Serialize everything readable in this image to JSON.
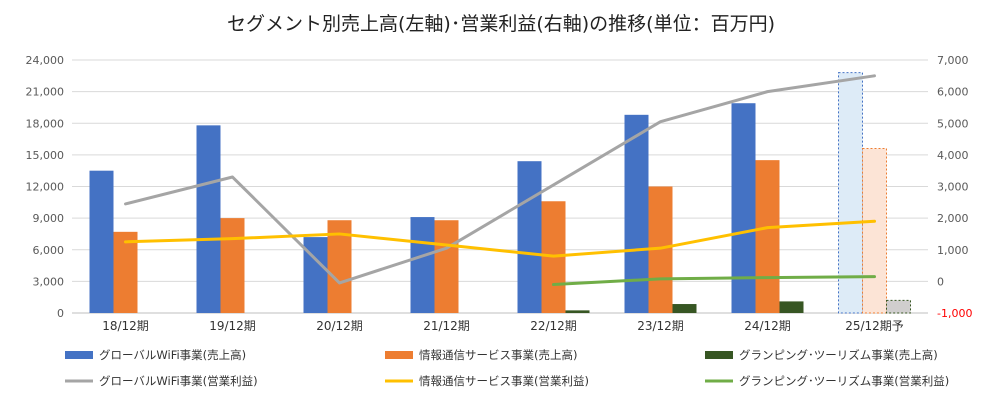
{
  "chart_data": {
    "type": "bar",
    "title": "セグメント別売上高(左軸)･営業利益(右軸)の推移(単位：百万円)",
    "categories": [
      "18/12期",
      "19/12期",
      "20/12期",
      "21/12期",
      "22/12期",
      "23/12期",
      "24/12期",
      "25/12期予"
    ],
    "y_left": {
      "min": 0,
      "max": 24000,
      "step": 3000,
      "ticks": [
        "0",
        "3,000",
        "6,000",
        "9,000",
        "12,000",
        "15,000",
        "18,000",
        "21,000",
        "24,000"
      ]
    },
    "y_right": {
      "min": -1000,
      "max": 7000,
      "step": 1000,
      "ticks": [
        "-1,000",
        "0",
        "1,000",
        "2,000",
        "3,000",
        "4,000",
        "5,000",
        "6,000",
        "7,000"
      ]
    },
    "grid": true,
    "legend_position": "bottom",
    "forecast_category": "25/12期予",
    "bar_series": [
      {
        "name": "グローバルWiFi事業(売上高)",
        "color": "#4472c4",
        "forecast_color": "#ddebf7",
        "values": [
          13500,
          17800,
          7200,
          9100,
          14400,
          18800,
          19900,
          22800
        ]
      },
      {
        "name": "情報通信サービス事業(売上高)",
        "color": "#ed7d31",
        "forecast_color": "#fce4d6",
        "values": [
          7700,
          9000,
          8800,
          8800,
          10600,
          12000,
          14500,
          15600
        ]
      },
      {
        "name": "グランピング･ツーリズム事業(売上高)",
        "color": "#375623",
        "forecast_color": "#d0cece",
        "values": [
          null,
          null,
          null,
          null,
          250,
          850,
          1100,
          1200
        ]
      }
    ],
    "line_series": [
      {
        "name": "グローバルWiFi事業(営業利益)",
        "color": "#a5a5a5",
        "values": [
          2450,
          3300,
          -50,
          1050,
          3050,
          5050,
          6000,
          6500
        ]
      },
      {
        "name": "情報通信サービス事業(営業利益)",
        "color": "#ffc000",
        "values": [
          1250,
          1350,
          1500,
          1150,
          800,
          1050,
          1700,
          1900
        ]
      },
      {
        "name": "グランピング･ツーリズム事業(営業利益)",
        "color": "#70ad47",
        "values": [
          null,
          null,
          null,
          null,
          -100,
          80,
          120,
          150
        ]
      }
    ]
  }
}
